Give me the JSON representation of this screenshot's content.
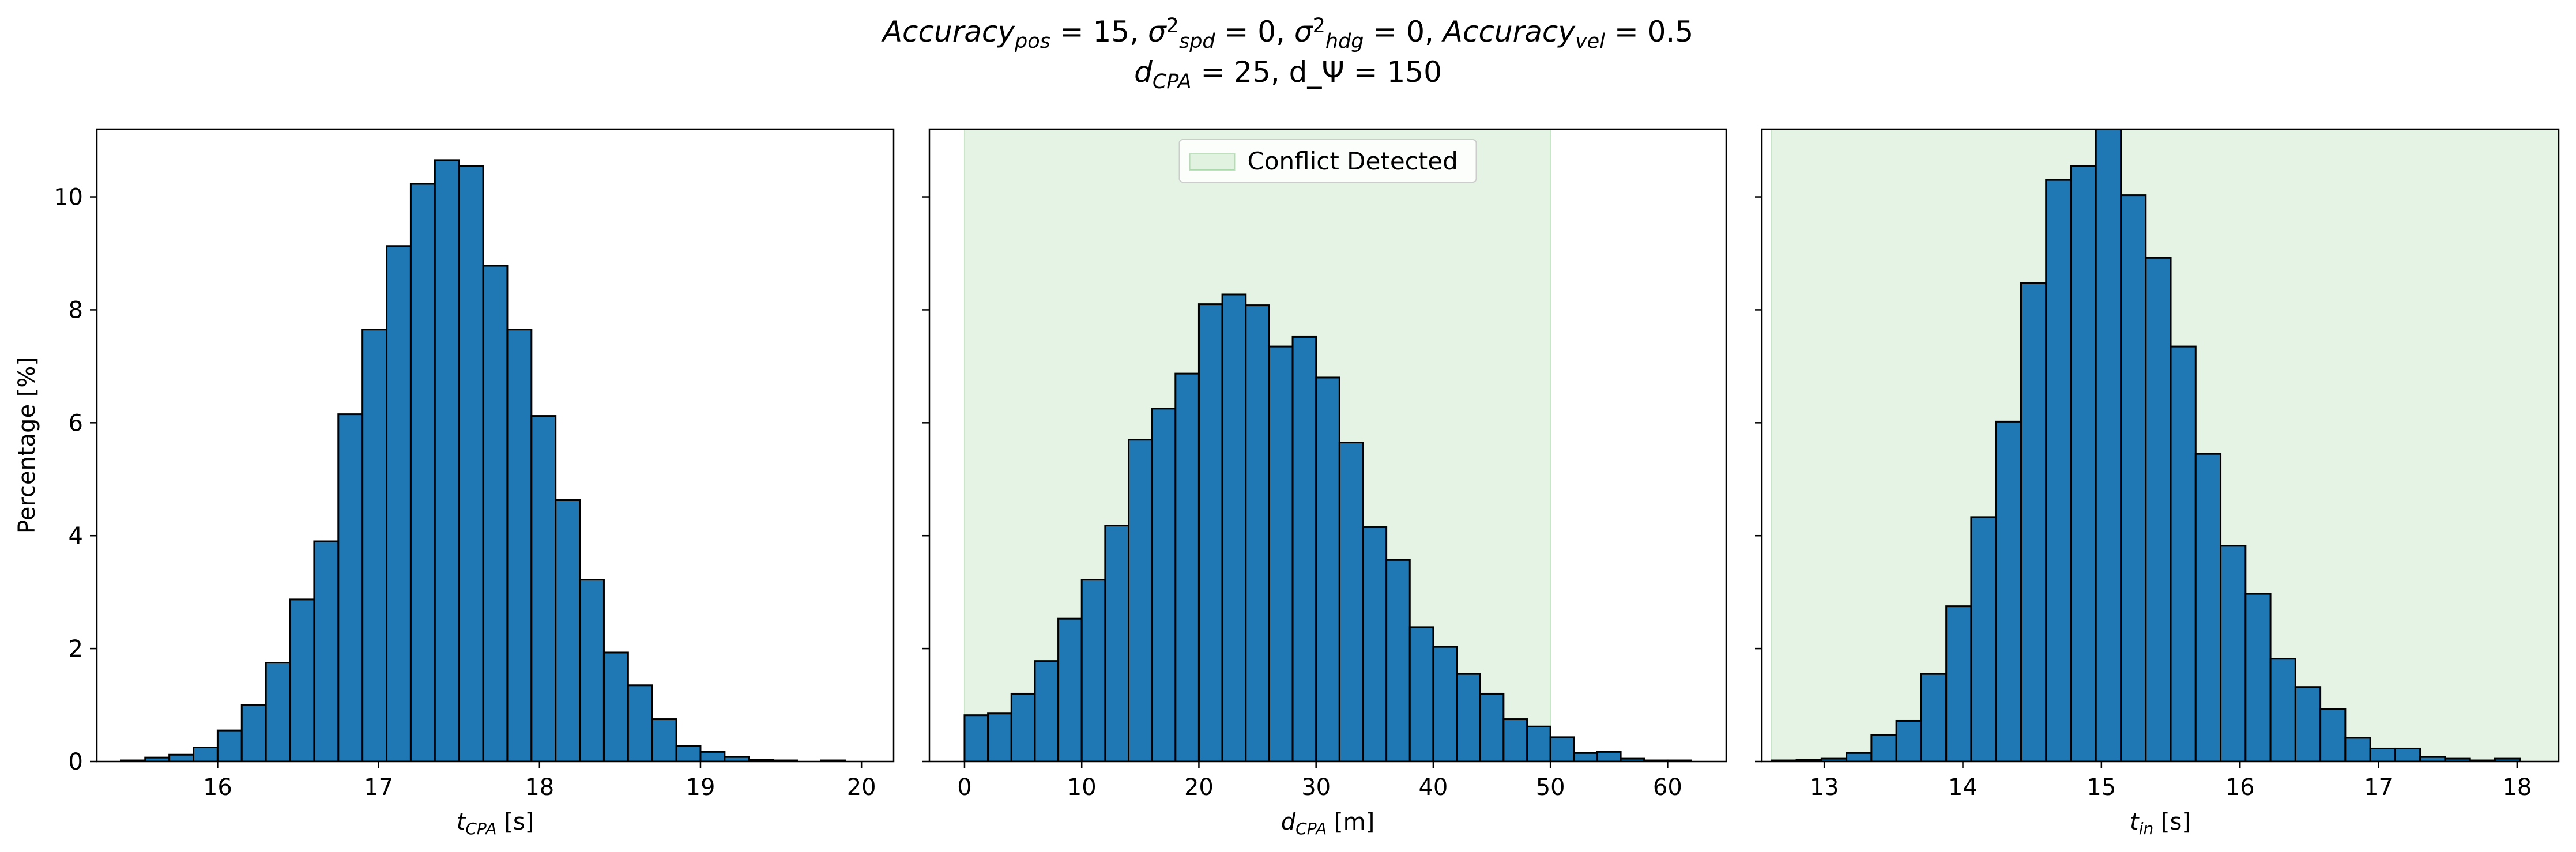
{
  "figure": {
    "title_line1": "Accuracy_pos = 15, σ²_spd = 0, σ²_hdg = 0, Accuracy_vel = 0.5",
    "title_line2": "d_CPA = 25, d_Ψ = 150"
  },
  "chart_data": [
    {
      "type": "bar",
      "subtype": "histogram",
      "xlabel": "t_CPA [s]",
      "ylabel": "Percentage [%]",
      "xlim": [
        15.25,
        20.2
      ],
      "ylim": [
        0,
        11.2
      ],
      "xticks": [
        16,
        17,
        18,
        19,
        20
      ],
      "yticks": [
        0,
        2,
        4,
        6,
        8,
        10
      ],
      "bin_edges": [
        15.4,
        15.55,
        15.7,
        15.85,
        16.0,
        16.15,
        16.3,
        16.45,
        16.6,
        16.75,
        16.9,
        17.05,
        17.2,
        17.35,
        17.5,
        17.65,
        17.8,
        17.95,
        18.1,
        18.25,
        18.4,
        18.55,
        18.7,
        18.85,
        19.0,
        19.15,
        19.3,
        19.45,
        19.6,
        19.75,
        19.9,
        20.05
      ],
      "values": [
        0.02,
        0.07,
        0.12,
        0.25,
        0.55,
        1.0,
        1.75,
        2.87,
        3.9,
        6.15,
        7.65,
        9.13,
        10.23,
        10.65,
        10.55,
        8.78,
        7.65,
        6.12,
        4.63,
        3.22,
        1.93,
        1.35,
        0.75,
        0.28,
        0.17,
        0.08,
        0.03,
        0.02,
        0.0,
        0.02,
        0.0
      ],
      "bar_color": "#1f77b4",
      "edge_color": "#000000"
    },
    {
      "type": "bar",
      "subtype": "histogram",
      "xlabel": "d_CPA [m]",
      "ylabel": "",
      "xlim": [
        -3.0,
        65.0
      ],
      "ylim": [
        0,
        11.2
      ],
      "xticks": [
        0,
        10,
        20,
        30,
        40,
        50,
        60
      ],
      "yticks": [
        0,
        2,
        4,
        6,
        8,
        10
      ],
      "bin_edges": [
        0,
        2,
        4,
        6,
        8,
        10,
        12,
        14,
        16,
        18,
        20,
        22,
        24,
        26,
        28,
        30,
        32,
        34,
        36,
        38,
        40,
        42,
        44,
        46,
        48,
        50,
        52,
        54,
        56,
        58,
        60,
        62
      ],
      "values": [
        0.82,
        0.85,
        1.2,
        1.78,
        2.53,
        3.22,
        4.18,
        5.7,
        6.25,
        6.87,
        8.1,
        8.27,
        8.08,
        7.35,
        7.52,
        6.8,
        5.65,
        4.15,
        3.57,
        2.38,
        2.03,
        1.55,
        1.2,
        0.75,
        0.62,
        0.43,
        0.15,
        0.17,
        0.05,
        0.02,
        0.02
      ],
      "bar_color": "#1f77b4",
      "edge_color": "#000000",
      "shaded_region": {
        "x": [
          0,
          50
        ],
        "color": "#2ca02c",
        "opacity": 0.12,
        "label": "Conflict Detected"
      },
      "legend": {
        "entries": [
          "Conflict Detected"
        ],
        "placement": "upper center"
      }
    },
    {
      "type": "bar",
      "subtype": "histogram",
      "xlabel": "t_in [s]",
      "ylabel": "",
      "xlim": [
        12.55,
        18.3
      ],
      "ylim": [
        0,
        11.2
      ],
      "xticks": [
        13,
        14,
        15,
        16,
        17,
        18
      ],
      "yticks": [
        0,
        2,
        4,
        6,
        8,
        10
      ],
      "bin_edges": [
        12.62,
        12.8,
        12.98,
        13.16,
        13.34,
        13.52,
        13.7,
        13.88,
        14.06,
        14.24,
        14.42,
        14.6,
        14.78,
        14.96,
        15.14,
        15.32,
        15.5,
        15.68,
        15.86,
        16.04,
        16.22,
        16.4,
        16.58,
        16.76,
        16.94,
        17.12,
        17.3,
        17.48,
        17.66,
        17.84,
        18.02
      ],
      "values": [
        0.02,
        0.03,
        0.05,
        0.15,
        0.47,
        0.72,
        1.55,
        2.75,
        4.33,
        6.02,
        8.47,
        10.3,
        10.55,
        11.2,
        10.03,
        8.92,
        7.35,
        5.45,
        3.82,
        2.97,
        1.82,
        1.32,
        0.93,
        0.42,
        0.23,
        0.23,
        0.08,
        0.05,
        0.02,
        0.05
      ],
      "bar_color": "#1f77b4",
      "edge_color": "#000000",
      "shaded_region": {
        "x": [
          12.62,
          18.3
        ],
        "color": "#2ca02c",
        "opacity": 0.12
      }
    }
  ]
}
